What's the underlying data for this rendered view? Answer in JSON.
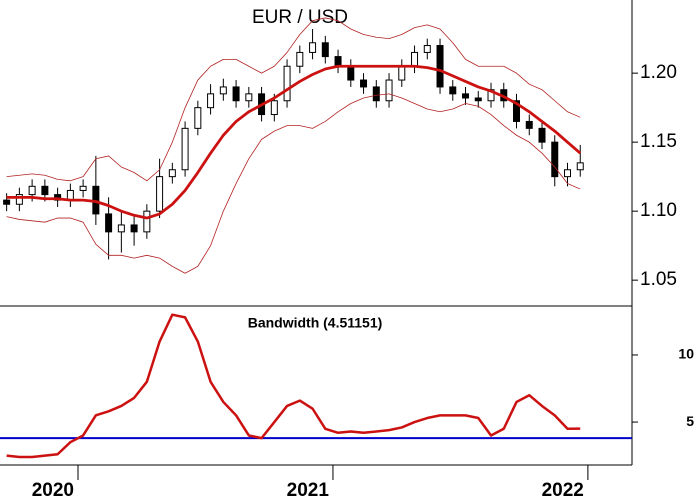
{
  "chart_data": [
    {
      "type": "candlestick",
      "title": "EUR / USD",
      "x": [
        2019.72,
        2019.77,
        2019.82,
        2019.87,
        2019.92,
        2019.97,
        2020.02,
        2020.07,
        2020.12,
        2020.17,
        2020.22,
        2020.27,
        2020.32,
        2020.37,
        2020.42,
        2020.47,
        2020.52,
        2020.57,
        2020.62,
        2020.67,
        2020.72,
        2020.77,
        2020.82,
        2020.87,
        2020.92,
        2020.97,
        2021.02,
        2021.07,
        2021.12,
        2021.17,
        2021.22,
        2021.27,
        2021.32,
        2021.37,
        2021.42,
        2021.47,
        2021.52,
        2021.57,
        2021.62,
        2021.67,
        2021.72,
        2021.77,
        2021.82,
        2021.87,
        2021.92,
        2021.97
      ],
      "open": [
        1.108,
        1.105,
        1.112,
        1.118,
        1.112,
        1.108,
        1.115,
        1.118,
        1.098,
        1.085,
        1.09,
        1.085,
        1.1,
        1.125,
        1.13,
        1.16,
        1.175,
        1.185,
        1.19,
        1.18,
        1.185,
        1.17,
        1.18,
        1.205,
        1.215,
        1.222,
        1.212,
        1.205,
        1.195,
        1.19,
        1.18,
        1.195,
        1.205,
        1.215,
        1.22,
        1.19,
        1.185,
        1.182,
        1.18,
        1.188,
        1.18,
        1.165,
        1.16,
        1.15,
        1.125,
        1.13
      ],
      "high": [
        1.113,
        1.117,
        1.123,
        1.123,
        1.117,
        1.12,
        1.123,
        1.14,
        1.11,
        1.1,
        1.097,
        1.105,
        1.138,
        1.135,
        1.165,
        1.18,
        1.192,
        1.196,
        1.195,
        1.19,
        1.19,
        1.185,
        1.21,
        1.22,
        1.232,
        1.227,
        1.217,
        1.21,
        1.2,
        1.195,
        1.2,
        1.21,
        1.22,
        1.225,
        1.225,
        1.195,
        1.19,
        1.187,
        1.193,
        1.193,
        1.185,
        1.17,
        1.165,
        1.155,
        1.135,
        1.148
      ],
      "low": [
        1.1,
        1.1,
        1.107,
        1.107,
        1.103,
        1.103,
        1.11,
        1.09,
        1.065,
        1.07,
        1.075,
        1.08,
        1.095,
        1.12,
        1.125,
        1.155,
        1.17,
        1.18,
        1.175,
        1.175,
        1.165,
        1.165,
        1.175,
        1.2,
        1.21,
        1.207,
        1.2,
        1.19,
        1.185,
        1.175,
        1.175,
        1.19,
        1.2,
        1.21,
        1.185,
        1.18,
        1.177,
        1.175,
        1.175,
        1.175,
        1.16,
        1.155,
        1.145,
        1.118,
        1.118,
        1.125
      ],
      "close": [
        1.105,
        1.112,
        1.118,
        1.112,
        1.108,
        1.115,
        1.118,
        1.098,
        1.085,
        1.09,
        1.085,
        1.1,
        1.125,
        1.13,
        1.16,
        1.175,
        1.185,
        1.19,
        1.18,
        1.185,
        1.17,
        1.18,
        1.205,
        1.215,
        1.222,
        1.212,
        1.205,
        1.195,
        1.19,
        1.18,
        1.195,
        1.205,
        1.215,
        1.22,
        1.19,
        1.185,
        1.182,
        1.18,
        1.188,
        1.18,
        1.165,
        1.16,
        1.15,
        1.125,
        1.13,
        1.135
      ],
      "series": [
        {
          "color": "#b22222",
          "line_width": 0.8,
          "values": [
            1.125,
            1.126,
            1.127,
            1.126,
            1.123,
            1.122,
            1.125,
            1.138,
            1.14,
            1.132,
            1.128,
            1.122,
            1.13,
            1.15,
            1.175,
            1.195,
            1.205,
            1.21,
            1.21,
            1.205,
            1.2,
            1.205,
            1.215,
            1.228,
            1.238,
            1.24,
            1.238,
            1.232,
            1.228,
            1.226,
            1.225,
            1.228,
            1.233,
            1.235,
            1.232,
            1.222,
            1.21,
            1.205,
            1.205,
            1.205,
            1.2,
            1.192,
            1.188,
            1.18,
            1.172,
            1.168
          ]
        },
        {
          "color": "#cc1111",
          "line_width": 2.8,
          "values": [
            1.11,
            1.11,
            1.11,
            1.109,
            1.109,
            1.108,
            1.108,
            1.107,
            1.104,
            1.1,
            1.097,
            1.095,
            1.098,
            1.105,
            1.115,
            1.128,
            1.142,
            1.155,
            1.165,
            1.172,
            1.177,
            1.182,
            1.188,
            1.194,
            1.199,
            1.203,
            1.205,
            1.205,
            1.205,
            1.205,
            1.205,
            1.205,
            1.205,
            1.204,
            1.202,
            1.198,
            1.194,
            1.19,
            1.187,
            1.183,
            1.178,
            1.172,
            1.165,
            1.158,
            1.15,
            1.142
          ]
        },
        {
          "color": "#b22222",
          "line_width": 0.8,
          "values": [
            1.096,
            1.094,
            1.093,
            1.092,
            1.095,
            1.095,
            1.092,
            1.076,
            1.068,
            1.068,
            1.066,
            1.068,
            1.066,
            1.06,
            1.055,
            1.06,
            1.075,
            1.1,
            1.12,
            1.138,
            1.152,
            1.158,
            1.162,
            1.162,
            1.16,
            1.165,
            1.172,
            1.178,
            1.182,
            1.184,
            1.185,
            1.182,
            1.178,
            1.174,
            1.172,
            1.174,
            1.178,
            1.176,
            1.17,
            1.162,
            1.155,
            1.15,
            1.142,
            1.132,
            1.12,
            1.116
          ]
        }
      ],
      "xlim": [
        2019.694,
        2022.173
      ],
      "ylim": [
        1.032,
        1.253
      ],
      "yticks": [
        1.05,
        {
          "value": 1.1,
          "label": "1.10"
        },
        1.15,
        {
          "value": 1.2,
          "label": "1.20"
        }
      ]
    },
    {
      "type": "line",
      "title": "Bandwidth (4.51151)",
      "x": [
        2019.72,
        2019.77,
        2019.82,
        2019.87,
        2019.92,
        2019.97,
        2020.02,
        2020.07,
        2020.12,
        2020.17,
        2020.22,
        2020.27,
        2020.32,
        2020.37,
        2020.42,
        2020.47,
        2020.52,
        2020.57,
        2020.62,
        2020.67,
        2020.72,
        2020.77,
        2020.82,
        2020.87,
        2020.92,
        2020.97,
        2021.02,
        2021.07,
        2021.12,
        2021.17,
        2021.22,
        2021.27,
        2021.32,
        2021.37,
        2021.42,
        2021.47,
        2021.52,
        2021.57,
        2021.62,
        2021.67,
        2021.72,
        2021.77,
        2021.82,
        2021.87,
        2021.92,
        2021.97
      ],
      "series": [
        {
          "color": "#cc1111",
          "values": [
            2.5,
            2.4,
            2.4,
            2.5,
            2.6,
            3.5,
            4.0,
            5.5,
            5.8,
            6.2,
            6.8,
            8.0,
            11.0,
            13.0,
            12.8,
            11.0,
            8.0,
            6.5,
            5.5,
            4.0,
            3.8,
            5.0,
            6.2,
            6.6,
            6.0,
            4.5,
            4.2,
            4.3,
            4.2,
            4.3,
            4.4,
            4.6,
            5.0,
            5.3,
            5.5,
            5.5,
            5.5,
            5.3,
            4.0,
            4.5,
            6.5,
            7.0,
            6.2,
            5.5,
            4.5,
            4.51151
          ]
        }
      ],
      "reference_line": {
        "value": 3.8,
        "color": "#0000cc"
      },
      "xlim": [
        2019.694,
        2022.173
      ],
      "ylim": [
        1.8,
        13.5
      ],
      "yticks": [
        5,
        10
      ],
      "xticks": [
        2020,
        2021,
        2022
      ]
    }
  ]
}
